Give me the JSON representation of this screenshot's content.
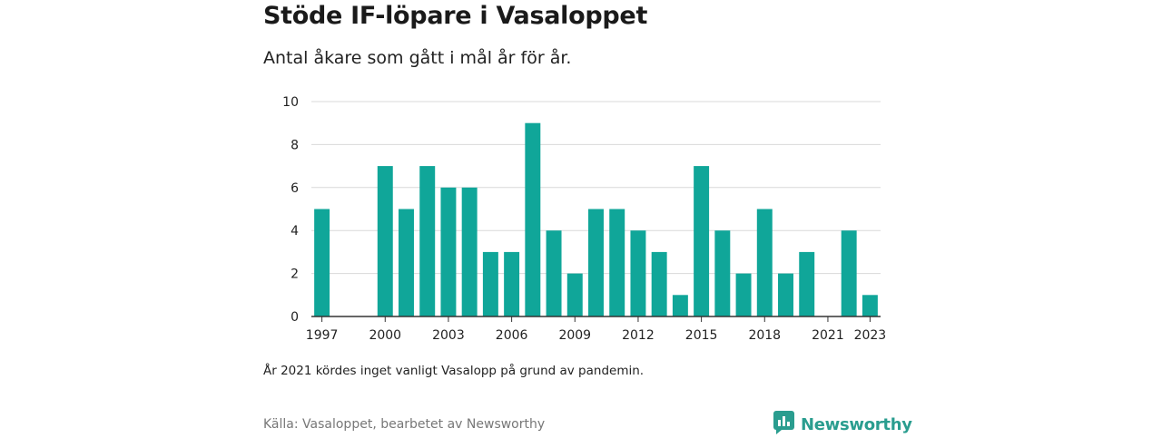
{
  "header": {
    "title": "Stöde IF-löpare i Vasaloppet",
    "subtitle": "Antal åkare som gått i mål år för år."
  },
  "footer": {
    "note": "År 2021 kördes inget vanligt Vasalopp på grund av pandemin.",
    "source": "Källa: Vasaloppet, bearbetet av Newsworthy",
    "brand_name": "Newsworthy",
    "brand_icon": "newsworthy-logo-icon"
  },
  "colors": {
    "bar": "#10a699",
    "brand": "#2a9d8f"
  },
  "chart_data": {
    "type": "bar",
    "title": "Stöde IF-löpare i Vasaloppet",
    "subtitle": "Antal åkare som gått i mål år för år.",
    "xlabel": "",
    "ylabel": "",
    "ylim": [
      0,
      10
    ],
    "yticks": [
      0,
      2,
      4,
      6,
      8,
      10
    ],
    "xtick_labels": [
      "1997",
      "2000",
      "2003",
      "2006",
      "2009",
      "2012",
      "2015",
      "2018",
      "2021",
      "2023"
    ],
    "grid": true,
    "categories": [
      "1997",
      "1998",
      "1999",
      "2000",
      "2001",
      "2002",
      "2003",
      "2004",
      "2005",
      "2006",
      "2007",
      "2008",
      "2009",
      "2010",
      "2011",
      "2012",
      "2013",
      "2014",
      "2015",
      "2016",
      "2017",
      "2018",
      "2019",
      "2020",
      "2021",
      "2022",
      "2023"
    ],
    "values": [
      5,
      0,
      0,
      7,
      5,
      7,
      6,
      6,
      3,
      3,
      9,
      4,
      2,
      5,
      5,
      4,
      3,
      1,
      7,
      4,
      2,
      5,
      2,
      3,
      0,
      4,
      1
    ]
  }
}
